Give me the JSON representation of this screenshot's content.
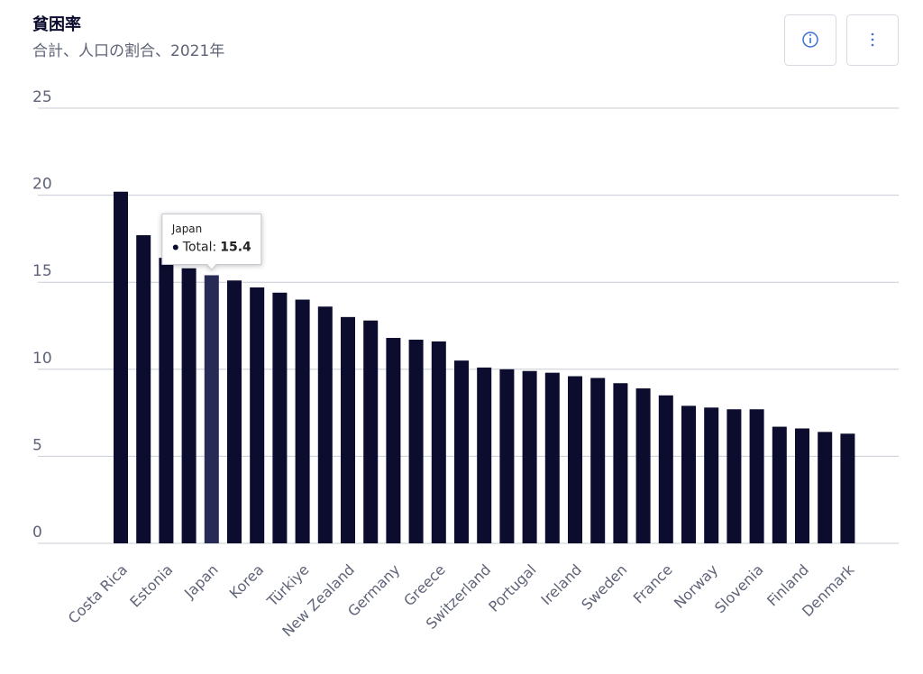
{
  "chart_data": {
    "type": "bar",
    "title": "貧困率",
    "subtitle": "合計、人口の割合、2021年",
    "categories": [
      "Costa Rica",
      null,
      "Estonia",
      null,
      "Japan",
      null,
      "Korea",
      null,
      "Türkiye",
      null,
      "New Zealand",
      null,
      "Germany",
      null,
      "Greece",
      null,
      "Switzerland",
      null,
      "Portugal",
      null,
      "Ireland",
      null,
      "Sweden",
      null,
      "France",
      null,
      "Norway",
      null,
      "Slovenia",
      null,
      "Finland",
      null,
      "Denmark"
    ],
    "values": [
      20.2,
      17.7,
      16.4,
      15.8,
      15.4,
      15.1,
      14.7,
      14.4,
      14.0,
      13.6,
      13.0,
      12.8,
      11.8,
      11.7,
      11.6,
      10.5,
      10.1,
      10.0,
      9.9,
      9.8,
      9.6,
      9.5,
      9.2,
      8.9,
      8.5,
      7.9,
      7.8,
      7.7,
      7.7,
      6.7,
      6.6,
      6.4,
      6.3
    ],
    "color": "#0b0c2e",
    "highlight_color": "#262a55",
    "highlight": "Japan",
    "tooltip_label": "Total:",
    "ylim": [
      0,
      25
    ],
    "yticks": [
      0,
      5,
      10,
      15,
      20,
      25
    ],
    "grid": true
  }
}
